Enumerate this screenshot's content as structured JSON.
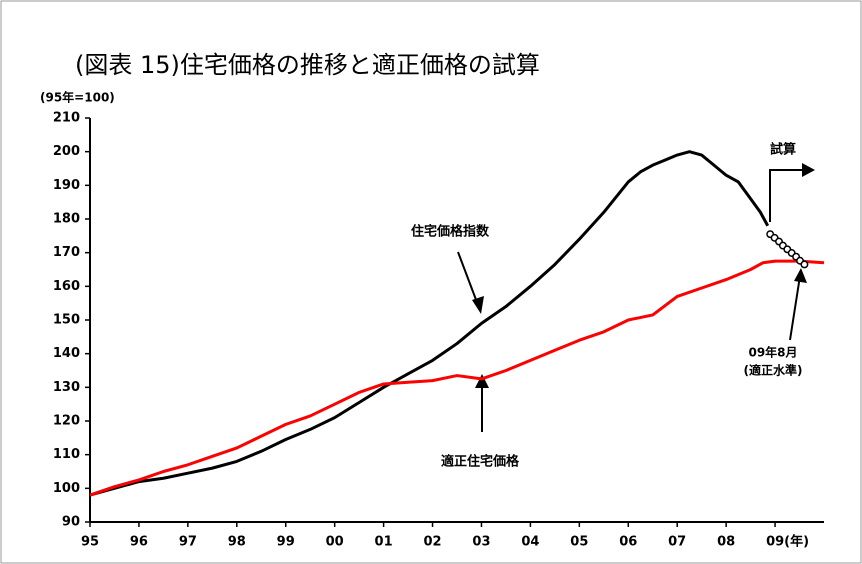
{
  "chart_data": {
    "type": "line",
    "title": "(図表 15)住宅価格の推移と適正価格の試算",
    "y_label": "(95年=100)",
    "xlim": [
      1995,
      2010
    ],
    "xticks": [
      {
        "value": 1995,
        "label": "95"
      },
      {
        "value": 1996,
        "label": "96"
      },
      {
        "value": 1997,
        "label": "97"
      },
      {
        "value": 1998,
        "label": "98"
      },
      {
        "value": 1999,
        "label": "99"
      },
      {
        "value": 2000,
        "label": "00"
      },
      {
        "value": 2001,
        "label": "01"
      },
      {
        "value": 2002,
        "label": "02"
      },
      {
        "value": 2003,
        "label": "03"
      },
      {
        "value": 2004,
        "label": "04"
      },
      {
        "value": 2005,
        "label": "05"
      },
      {
        "value": 2006,
        "label": "06"
      },
      {
        "value": 2007,
        "label": "07"
      },
      {
        "value": 2008,
        "label": "08"
      },
      {
        "value": 2009,
        "label": "09(年)"
      }
    ],
    "ylim": [
      90,
      210
    ],
    "yticks": [
      90,
      100,
      110,
      120,
      130,
      140,
      150,
      160,
      170,
      180,
      190,
      200,
      210
    ],
    "series": [
      {
        "name": "住宅価格指数",
        "color": "#000000",
        "x": [
          1995,
          1995.5,
          1996,
          1996.5,
          1997,
          1997.5,
          1998,
          1998.5,
          1999,
          1999.5,
          2000,
          2000.5,
          2001,
          2001.5,
          2002,
          2002.5,
          2003,
          2003.5,
          2004,
          2004.5,
          2005,
          2005.5,
          2006,
          2006.25,
          2006.5,
          2006.75,
          2007,
          2007.25,
          2007.5,
          2007.75,
          2008,
          2008.25,
          2008.5,
          2008.7,
          2008.85
        ],
        "values": [
          98,
          100,
          102,
          103,
          104.5,
          106,
          108,
          111,
          114.5,
          117.5,
          121,
          125.5,
          130,
          134,
          138,
          143,
          149,
          154,
          160,
          166.5,
          174,
          182,
          191,
          194,
          196,
          197.5,
          199,
          200,
          199,
          196,
          193,
          191,
          186,
          182,
          178
        ]
      },
      {
        "name": "適正住宅価格",
        "color": "#ff0000",
        "x": [
          1995,
          1995.5,
          1996,
          1996.5,
          1997,
          1997.5,
          1998,
          1998.5,
          1999,
          1999.5,
          2000,
          2000.5,
          2001,
          2001.5,
          2002,
          2002.5,
          2003,
          2003.5,
          2004,
          2004.5,
          2005,
          2005.5,
          2006,
          2006.5,
          2007,
          2007.5,
          2008,
          2008.5,
          2008.75,
          2009,
          2009.5,
          2010
        ],
        "values": [
          98,
          100.5,
          102.5,
          105,
          107,
          109.5,
          112,
          115.5,
          119,
          121.5,
          125,
          128.5,
          131,
          131.5,
          132,
          133.5,
          132.5,
          135,
          138,
          141,
          144,
          146.5,
          150,
          151.5,
          157,
          159.5,
          162,
          165,
          167,
          167.5,
          167.5,
          167
        ]
      },
      {
        "name": "試算",
        "color": "#000000",
        "marker": "circle",
        "x": [
          2008.9,
          2008.99,
          2009.08,
          2009.16,
          2009.25,
          2009.34,
          2009.43,
          2009.51,
          2009.6
        ],
        "values": [
          175.5,
          174.4,
          173.3,
          172.1,
          171,
          169.9,
          168.8,
          167.6,
          166.5
        ]
      }
    ],
    "annotations": [
      "09年8月",
      "(適正水準)"
    ]
  }
}
